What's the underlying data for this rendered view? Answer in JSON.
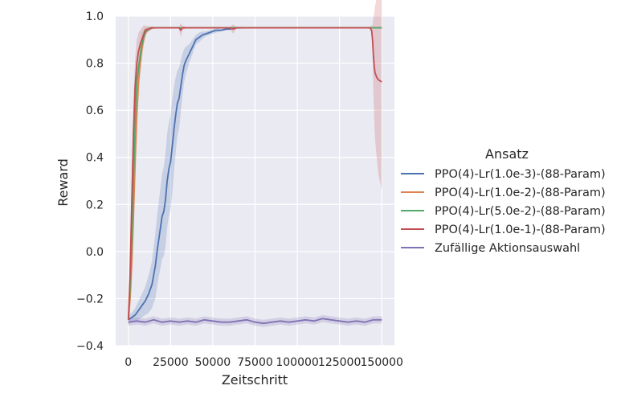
{
  "chart_data": {
    "type": "line",
    "xlabel": "Zeitschritt",
    "ylabel": "Reward",
    "xlim": [
      -7500,
      157500
    ],
    "ylim": [
      -0.4,
      1.0
    ],
    "x_ticks": [
      0,
      25000,
      50000,
      75000,
      100000,
      125000,
      150000
    ],
    "x_tick_labels": [
      "0",
      "25000",
      "50000",
      "75000",
      "100000",
      "125000",
      "150000"
    ],
    "y_ticks": [
      -0.4,
      -0.2,
      0.0,
      0.2,
      0.4,
      0.6,
      0.8,
      1.0
    ],
    "y_tick_labels": [
      "−0.4",
      "−0.2",
      "0.0",
      "0.2",
      "0.4",
      "0.6",
      "0.8",
      "1.0"
    ],
    "grid": true,
    "background": "#eaeaf2",
    "legend": {
      "title": "Ansatz",
      "placement": "right"
    },
    "series": [
      {
        "name": "PPO(4)-Lr(1.0e-3)-(88-Param)",
        "color": "#4c72b0",
        "x": [
          0,
          2000,
          4000,
          6000,
          8000,
          10000,
          12000,
          14000,
          15000,
          16000,
          17000,
          18000,
          19000,
          20000,
          21000,
          22000,
          23000,
          24000,
          25000,
          26000,
          27000,
          28000,
          29000,
          30000,
          31000,
          32000,
          33000,
          34000,
          36000,
          38000,
          40000,
          42000,
          44000,
          46000,
          48000,
          50000,
          52000,
          55000,
          58000,
          60000,
          62000,
          65000,
          70000,
          80000,
          100000,
          120000,
          140000,
          150000
        ],
        "y": [
          -0.29,
          -0.28,
          -0.27,
          -0.25,
          -0.23,
          -0.21,
          -0.18,
          -0.14,
          -0.1,
          -0.06,
          0.0,
          0.05,
          0.1,
          0.15,
          0.17,
          0.22,
          0.3,
          0.35,
          0.38,
          0.45,
          0.52,
          0.58,
          0.63,
          0.65,
          0.7,
          0.75,
          0.79,
          0.81,
          0.84,
          0.87,
          0.9,
          0.91,
          0.92,
          0.925,
          0.93,
          0.935,
          0.94,
          0.94,
          0.945,
          0.945,
          0.95,
          0.95,
          0.95,
          0.95,
          0.95,
          0.95,
          0.95,
          0.95
        ],
        "band": [
          0.02,
          0.02,
          0.03,
          0.04,
          0.05,
          0.06,
          0.08,
          0.1,
          0.12,
          0.14,
          0.15,
          0.16,
          0.17,
          0.18,
          0.19,
          0.2,
          0.2,
          0.2,
          0.2,
          0.2,
          0.18,
          0.16,
          0.14,
          0.13,
          0.11,
          0.09,
          0.07,
          0.06,
          0.04,
          0.03,
          0.02,
          0.02,
          0.015,
          0.01,
          0.01,
          0.01,
          0.01,
          0.005,
          0.005,
          0.005,
          0.005,
          0.005,
          0.003,
          0.003,
          0.003,
          0.003,
          0.003,
          0.003
        ]
      },
      {
        "name": "PPO(4)-Lr(1.0e-2)-(88-Param)",
        "color": "#dd8452",
        "x": [
          0,
          1000,
          2000,
          3000,
          4000,
          5000,
          6000,
          7000,
          8000,
          9000,
          10000,
          11000,
          12000,
          14000,
          16000,
          20000,
          30000,
          50000,
          100000,
          150000
        ],
        "y": [
          -0.29,
          -0.2,
          -0.05,
          0.15,
          0.38,
          0.58,
          0.72,
          0.8,
          0.86,
          0.9,
          0.93,
          0.94,
          0.945,
          0.95,
          0.95,
          0.95,
          0.95,
          0.95,
          0.95,
          0.95
        ],
        "band": [
          0.02,
          0.06,
          0.1,
          0.12,
          0.12,
          0.1,
          0.08,
          0.06,
          0.05,
          0.03,
          0.02,
          0.01,
          0.01,
          0.005,
          0.003,
          0.003,
          0.003,
          0.003,
          0.003,
          0.003
        ]
      },
      {
        "name": "PPO(4)-Lr(5.0e-2)-(88-Param)",
        "color": "#55a868",
        "x": [
          0,
          1000,
          2000,
          3000,
          4000,
          5000,
          6000,
          7000,
          8000,
          9000,
          10000,
          11000,
          12000,
          14000,
          16000,
          20000,
          30000,
          50000,
          100000,
          150000
        ],
        "y": [
          -0.29,
          -0.15,
          0.05,
          0.3,
          0.55,
          0.72,
          0.78,
          0.83,
          0.88,
          0.91,
          0.93,
          0.94,
          0.945,
          0.95,
          0.95,
          0.95,
          0.95,
          0.95,
          0.95,
          0.95
        ],
        "band": [
          0.02,
          0.06,
          0.1,
          0.12,
          0.1,
          0.08,
          0.07,
          0.06,
          0.05,
          0.03,
          0.02,
          0.01,
          0.01,
          0.005,
          0.003,
          0.003,
          0.003,
          0.003,
          0.003,
          0.003
        ]
      },
      {
        "name": "PPO(4)-Lr(1.0e-1)-(88-Param)",
        "color": "#c44e52",
        "x": [
          0,
          1000,
          2000,
          3000,
          4000,
          5000,
          6000,
          7000,
          8000,
          9000,
          10000,
          12000,
          14000,
          16000,
          20000,
          30000,
          31000,
          32000,
          34000,
          40000,
          60000,
          62000,
          64000,
          70000,
          100000,
          140000,
          142000,
          143000,
          144000,
          144500,
          145000,
          145500,
          146000,
          147000,
          148000,
          150000
        ],
        "y": [
          -0.29,
          -0.1,
          0.2,
          0.5,
          0.7,
          0.8,
          0.85,
          0.88,
          0.9,
          0.92,
          0.94,
          0.945,
          0.95,
          0.95,
          0.95,
          0.95,
          0.94,
          0.95,
          0.95,
          0.95,
          0.95,
          0.945,
          0.95,
          0.95,
          0.95,
          0.95,
          0.95,
          0.95,
          0.94,
          0.9,
          0.84,
          0.79,
          0.76,
          0.74,
          0.73,
          0.72
        ],
        "band": [
          0.02,
          0.08,
          0.12,
          0.14,
          0.12,
          0.1,
          0.08,
          0.06,
          0.05,
          0.04,
          0.02,
          0.01,
          0.005,
          0.003,
          0.003,
          0.003,
          0.03,
          0.01,
          0.003,
          0.003,
          0.003,
          0.02,
          0.003,
          0.003,
          0.003,
          0.003,
          0.003,
          0.005,
          0.02,
          0.06,
          0.15,
          0.22,
          0.28,
          0.34,
          0.4,
          0.46
        ]
      },
      {
        "name": "Zufällige Aktionsauswahl",
        "color": "#8172b3",
        "x": [
          0,
          5000,
          10000,
          15000,
          20000,
          25000,
          30000,
          35000,
          40000,
          45000,
          50000,
          55000,
          60000,
          65000,
          70000,
          75000,
          80000,
          85000,
          90000,
          95000,
          100000,
          105000,
          110000,
          115000,
          120000,
          125000,
          130000,
          135000,
          140000,
          145000,
          150000
        ],
        "y": [
          -0.3,
          -0.295,
          -0.3,
          -0.29,
          -0.3,
          -0.295,
          -0.3,
          -0.295,
          -0.3,
          -0.29,
          -0.295,
          -0.3,
          -0.3,
          -0.295,
          -0.29,
          -0.3,
          -0.305,
          -0.3,
          -0.295,
          -0.3,
          -0.295,
          -0.29,
          -0.295,
          -0.285,
          -0.29,
          -0.295,
          -0.3,
          -0.295,
          -0.3,
          -0.29,
          -0.29
        ],
        "band": [
          0.015,
          0.015,
          0.015,
          0.015,
          0.015,
          0.015,
          0.015,
          0.015,
          0.015,
          0.015,
          0.015,
          0.015,
          0.015,
          0.015,
          0.015,
          0.015,
          0.015,
          0.015,
          0.015,
          0.015,
          0.015,
          0.015,
          0.015,
          0.015,
          0.015,
          0.015,
          0.015,
          0.015,
          0.015,
          0.015,
          0.015
        ]
      }
    ]
  }
}
